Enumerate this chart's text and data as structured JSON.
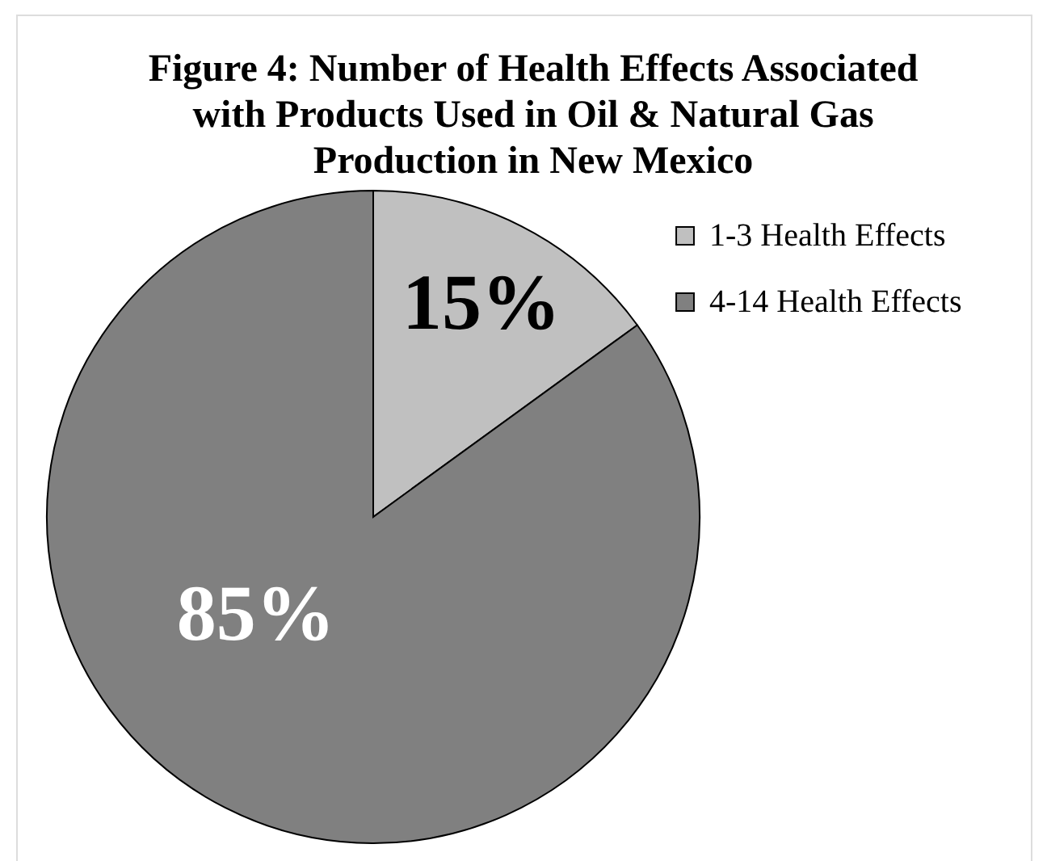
{
  "chart_data": {
    "type": "pie",
    "title": "Figure 4: Number of Health Effects Associated with Products Used in Oil & Natural Gas Production in New Mexico",
    "categories": [
      "1-3 Health Effects",
      "4-14 Health Effects"
    ],
    "values": [
      15,
      85
    ],
    "colors": [
      "#c0c0c0",
      "#808080"
    ],
    "value_labels": [
      "15%",
      "85%"
    ],
    "legend": "top right"
  }
}
